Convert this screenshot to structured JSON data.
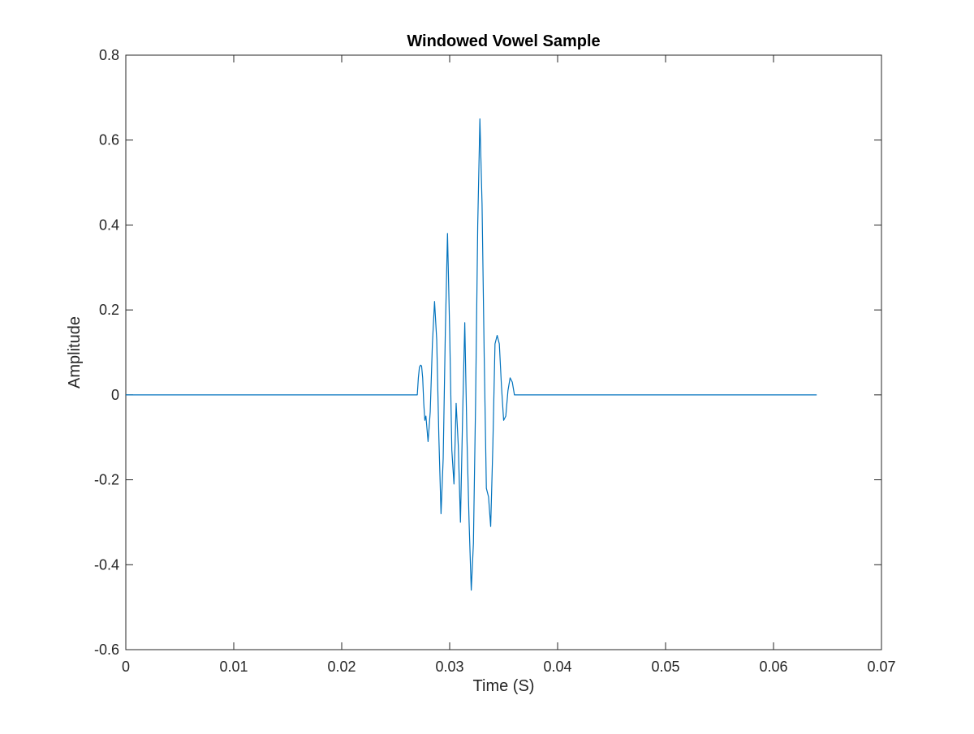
{
  "chart_data": {
    "type": "line",
    "title": "Windowed Vowel Sample",
    "xlabel": "Time (S)",
    "ylabel": "Amplitude",
    "xlim": [
      0,
      0.07
    ],
    "ylim": [
      -0.6,
      0.8
    ],
    "xticks": [
      0,
      0.01,
      0.02,
      0.03,
      0.04,
      0.05,
      0.06,
      0.07
    ],
    "xtick_labels": [
      "0",
      "0.01",
      "0.02",
      "0.03",
      "0.04",
      "0.05",
      "0.06",
      "0.07"
    ],
    "yticks": [
      -0.6,
      -0.4,
      -0.2,
      0,
      0.2,
      0.4,
      0.6,
      0.8
    ],
    "ytick_labels": [
      "-0.6",
      "-0.4",
      "-0.2",
      "0",
      "0.2",
      "0.4",
      "0.6",
      "0.8"
    ],
    "grid": false,
    "series": [
      {
        "color": "#0072BD",
        "x": [
          0,
          0.027,
          0.0271,
          0.0272,
          0.0273,
          0.0274,
          0.0275,
          0.0276,
          0.0277,
          0.0278,
          0.028,
          0.0282,
          0.0284,
          0.0286,
          0.0288,
          0.029,
          0.0292,
          0.0294,
          0.0296,
          0.0298,
          0.03,
          0.0302,
          0.0304,
          0.0306,
          0.0308,
          0.031,
          0.0312,
          0.0314,
          0.0316,
          0.0318,
          0.032,
          0.0322,
          0.0324,
          0.0326,
          0.0328,
          0.033,
          0.0332,
          0.0334,
          0.0336,
          0.0338,
          0.034,
          0.0342,
          0.0344,
          0.0346,
          0.0348,
          0.035,
          0.0352,
          0.0354,
          0.0356,
          0.0358,
          0.036,
          0.0362,
          0.0364,
          0.0366,
          0.0368,
          0.037,
          0.064
        ],
        "y": [
          0,
          0,
          0.04,
          0.065,
          0.07,
          0.068,
          0.04,
          -0.02,
          -0.06,
          -0.05,
          -0.11,
          -0.04,
          0.12,
          0.22,
          0.13,
          -0.1,
          -0.28,
          -0.15,
          0.15,
          0.38,
          0.15,
          -0.13,
          -0.21,
          -0.02,
          -0.12,
          -0.3,
          -0.05,
          0.17,
          -0.1,
          -0.3,
          -0.46,
          -0.35,
          -0.02,
          0.4,
          0.65,
          0.45,
          0.09,
          -0.22,
          -0.24,
          -0.31,
          -0.12,
          0.12,
          0.14,
          0.12,
          0.02,
          -0.06,
          -0.05,
          0.01,
          0.04,
          0.03,
          0.0,
          0,
          0,
          0,
          0,
          0,
          0
        ]
      }
    ]
  }
}
